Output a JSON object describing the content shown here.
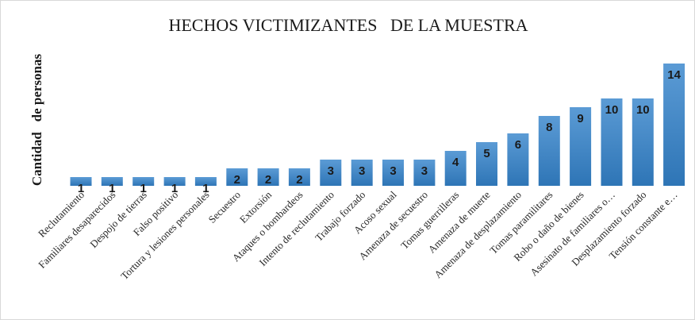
{
  "chart_data": {
    "type": "bar",
    "title": "HECHOS VICTIMIZANTES   DE LA MUESTRA",
    "ylabel": "Cantidad   de personas",
    "xlabel": "",
    "categories": [
      "Reclutamiento",
      "Familiares desaparecidos",
      "Despojo de tierras",
      "Falso positivo",
      "Tortura y lesiones personales",
      "Secuestro",
      "Extorsión",
      "Ataques o bombardeos",
      "Intento de reclutamiento",
      "Trabajo forzado",
      "Acoso sexual",
      "Amenaza de secuestro",
      "Tomas guerrilleras",
      "Amenaza de muerte",
      "Amenaza de desplazamiento",
      "Tomas paramilitares",
      "Robo o daño de bienes",
      "Asesinato de familiares o…",
      "Desplazamiento forzado",
      "Tensión constante e…"
    ],
    "values": [
      1,
      1,
      1,
      1,
      1,
      2,
      2,
      2,
      3,
      3,
      3,
      3,
      4,
      5,
      6,
      8,
      9,
      10,
      10,
      14
    ],
    "ylim": [
      0,
      14
    ],
    "grid": false,
    "legend": "none",
    "bar_color_top": "#5b9bd5",
    "bar_color_bottom": "#2e75b6"
  }
}
